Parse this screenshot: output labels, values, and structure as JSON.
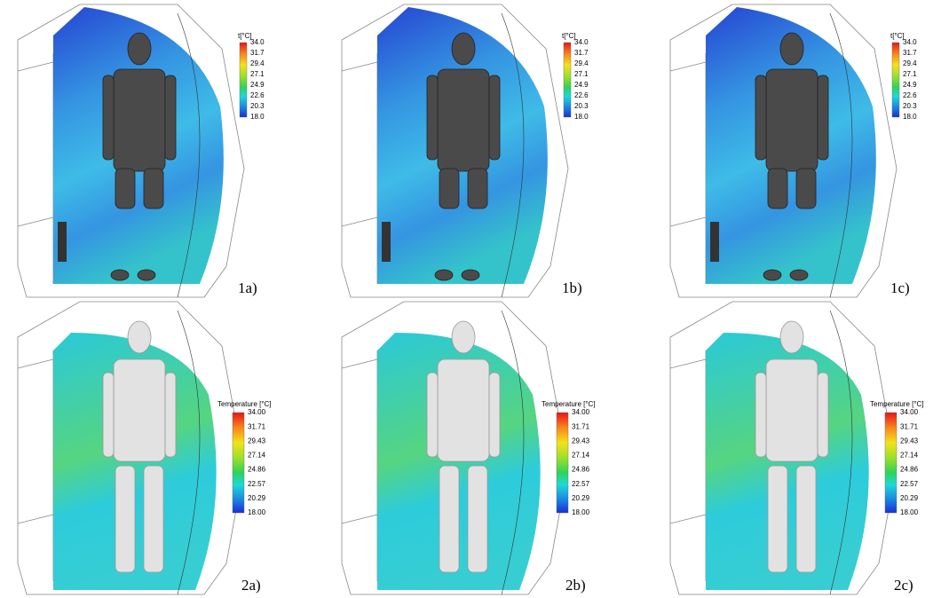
{
  "panels": [
    {
      "label": "1a)",
      "legend": {
        "title": "t[°C]",
        "ticks": [
          "34.0",
          "31.7",
          "29.4",
          "27.1",
          "24.9",
          "22.6",
          "20.3",
          "18.0"
        ]
      }
    },
    {
      "label": "1b)",
      "legend": {
        "title": "t[°C]",
        "ticks": [
          "34.0",
          "31.7",
          "29.4",
          "27.1",
          "24.9",
          "22.6",
          "20.3",
          "18.0"
        ]
      }
    },
    {
      "label": "1c)",
      "legend": {
        "title": "t[°C]",
        "ticks": [
          "34.0",
          "31.7",
          "29.4",
          "27.1",
          "24.9",
          "22.6",
          "20.3",
          "18.0"
        ]
      }
    },
    {
      "label": "2a)",
      "legend": {
        "title": "Temperature [°C]",
        "ticks": [
          "34.00",
          "31.71",
          "29.43",
          "27.14",
          "24.86",
          "22.57",
          "20.29",
          "18.00"
        ]
      }
    },
    {
      "label": "2b)",
      "legend": {
        "title": "Temperature [°C]",
        "ticks": [
          "34.00",
          "31.71",
          "29.43",
          "27.14",
          "24.86",
          "22.57",
          "20.29",
          "18.00"
        ]
      }
    },
    {
      "label": "2c)",
      "legend": {
        "title": "Temperature [°C]",
        "ticks": [
          "34.00",
          "31.71",
          "29.43",
          "27.14",
          "24.86",
          "22.57",
          "20.29",
          "18.00"
        ]
      }
    }
  ]
}
